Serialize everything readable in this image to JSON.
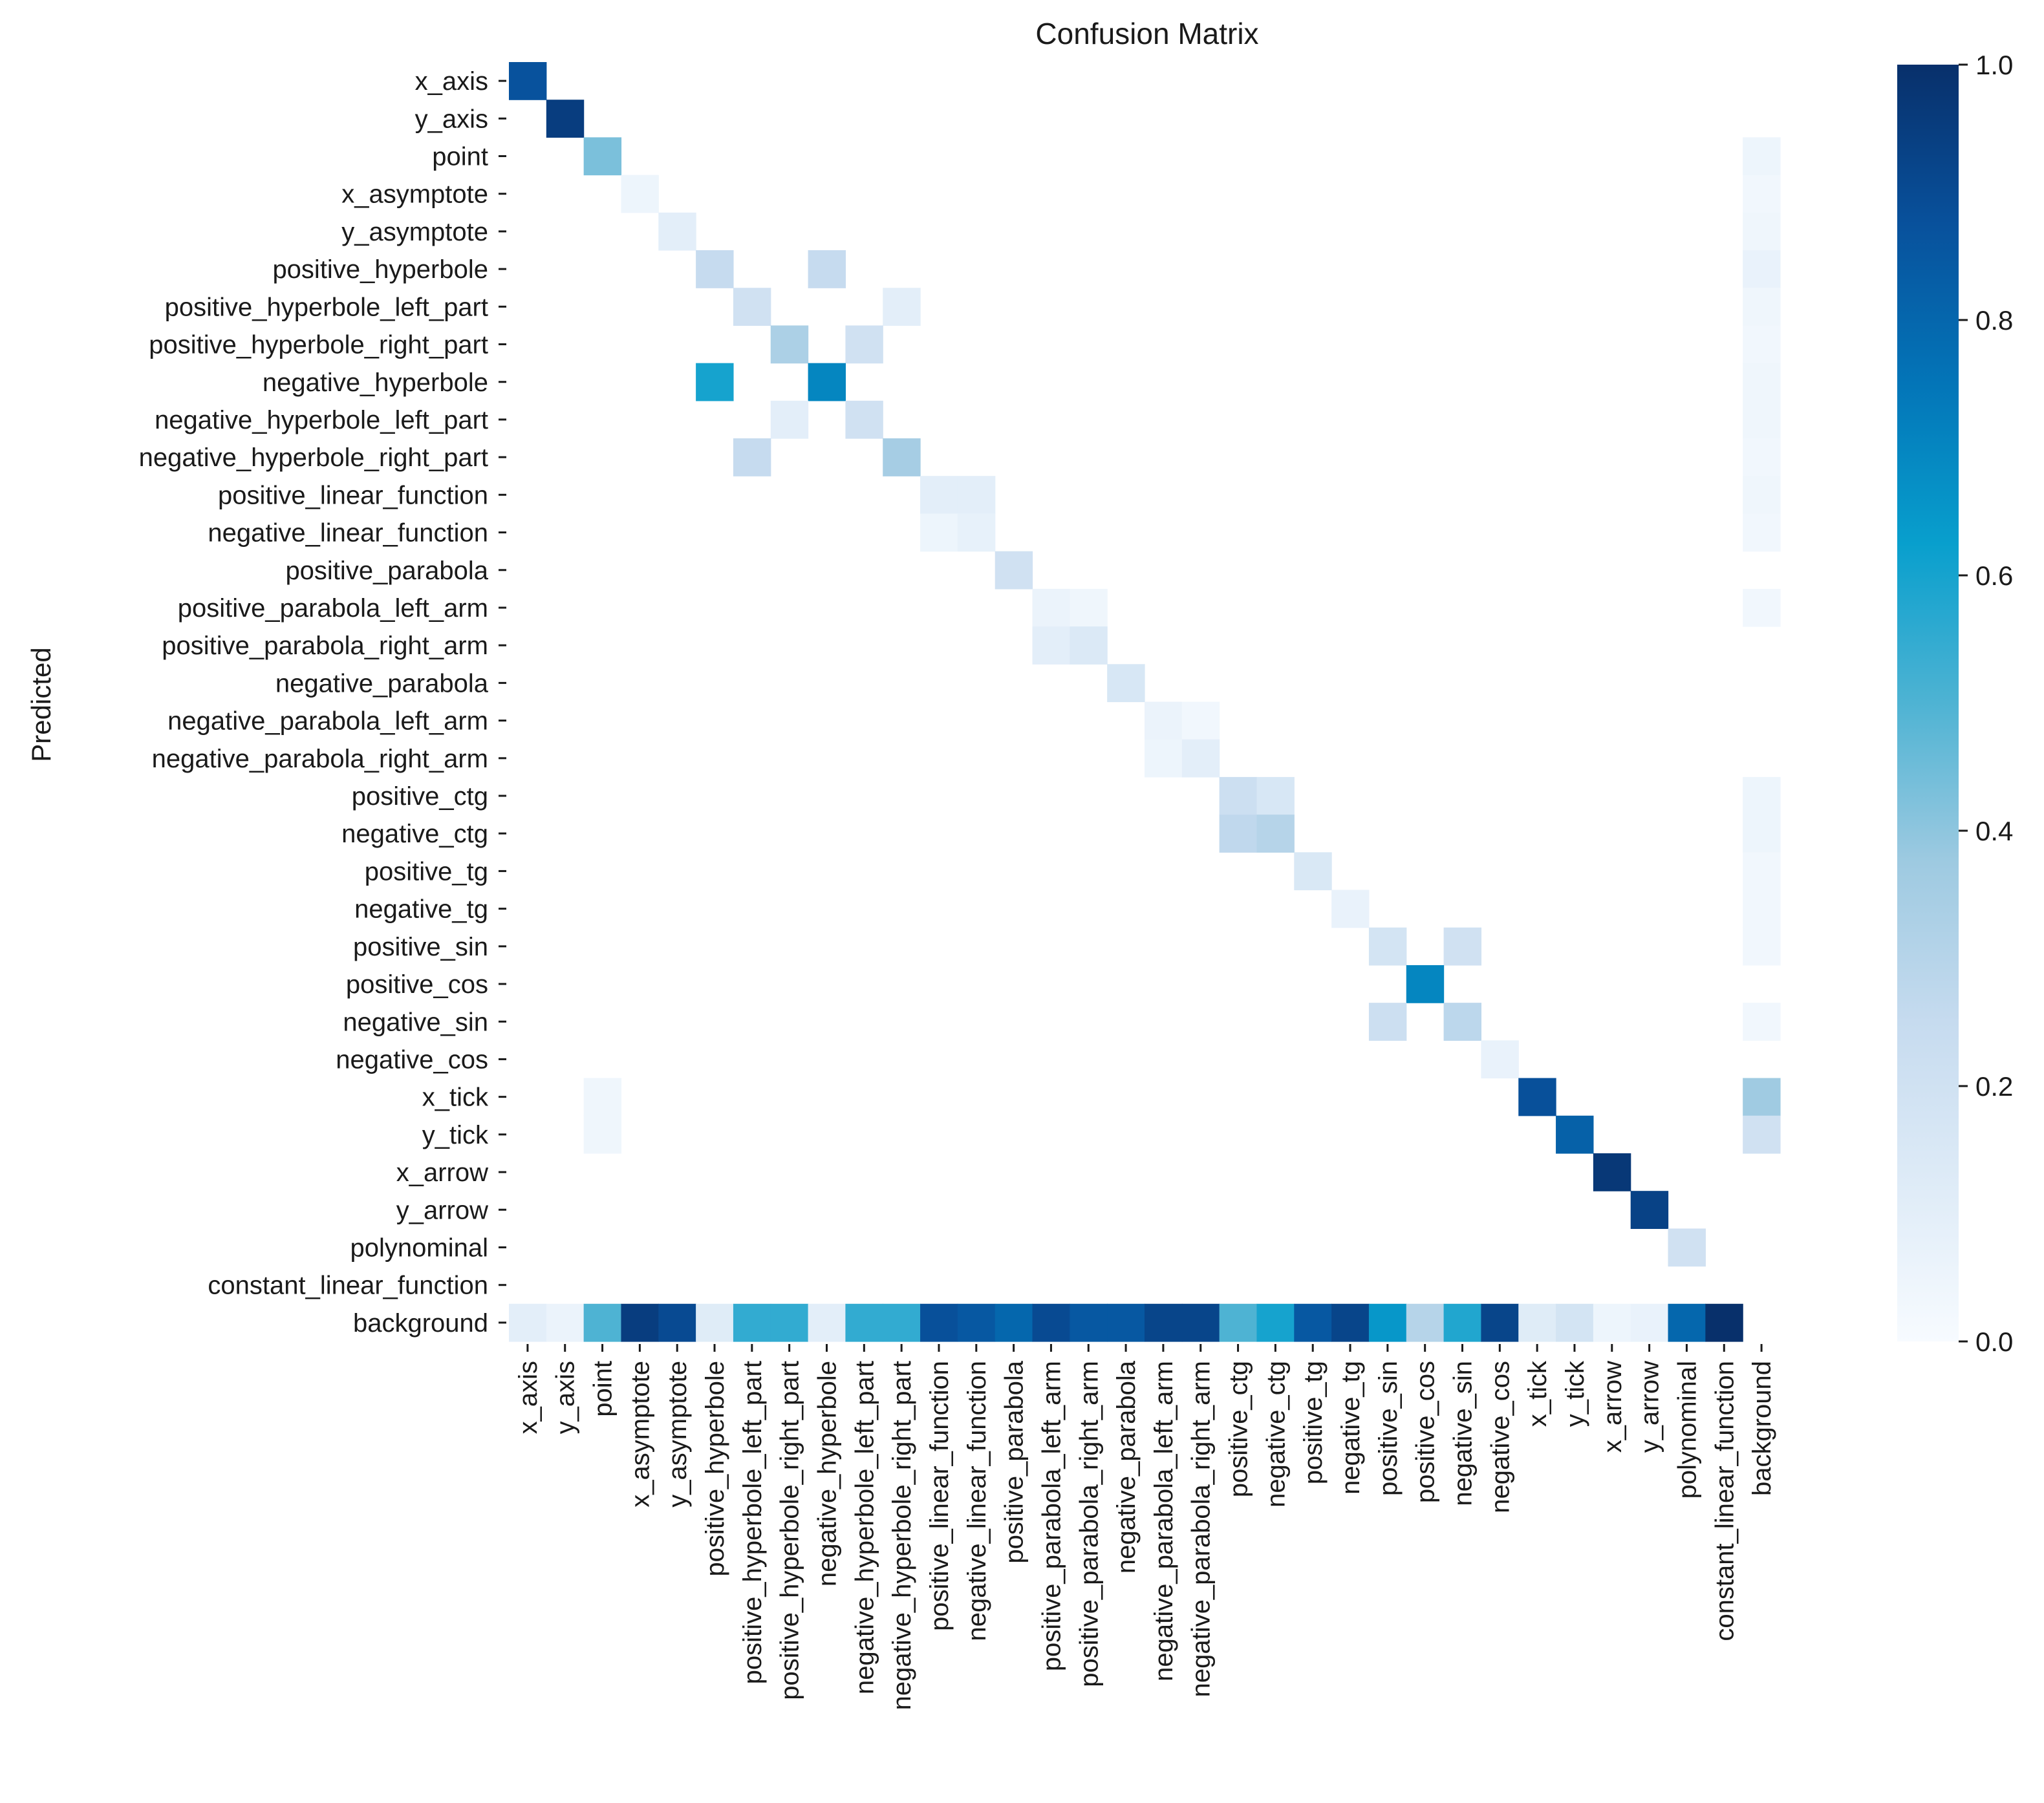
{
  "chart_data": {
    "type": "heatmap",
    "title": "Confusion Matrix",
    "ylabel": "Predicted",
    "xlabel": "",
    "labels": [
      "x_axis",
      "y_axis",
      "point",
      "x_asymptote",
      "y_asymptote",
      "positive_hyperbole",
      "positive_hyperbole_left_part",
      "positive_hyperbole_right_part",
      "negative_hyperbole",
      "negative_hyperbole_left_part",
      "negative_hyperbole_right_part",
      "positive_linear_function",
      "negative_linear_function",
      "positive_parabola",
      "positive_parabola_left_arm",
      "positive_parabola_right_arm",
      "negative_parabola",
      "negative_parabola_left_arm",
      "negative_parabola_right_arm",
      "positive_ctg",
      "negative_ctg",
      "positive_tg",
      "negative_tg",
      "positive_sin",
      "positive_cos",
      "negative_sin",
      "negative_cos",
      "x_tick",
      "y_tick",
      "x_arrow",
      "y_arrow",
      "polynominal",
      "constant_linear_function",
      "background"
    ],
    "colorbar": {
      "min": 0.0,
      "max": 1.0,
      "ticks": [
        "0.0",
        "0.2",
        "0.4",
        "0.6",
        "0.8",
        "1.0"
      ]
    },
    "colors": {
      "low": "#f7fbff",
      "high": "#08306b"
    },
    "cells": [
      {
        "row": 0,
        "col": 0,
        "value": 0.87
      },
      {
        "row": 1,
        "col": 1,
        "value": 0.95
      },
      {
        "row": 2,
        "col": 2,
        "value": 0.43
      },
      {
        "row": 3,
        "col": 3,
        "value": 0.05
      },
      {
        "row": 4,
        "col": 4,
        "value": 0.1
      },
      {
        "row": 5,
        "col": 5,
        "value": 0.25
      },
      {
        "row": 5,
        "col": 8,
        "value": 0.25
      },
      {
        "row": 6,
        "col": 6,
        "value": 0.2
      },
      {
        "row": 6,
        "col": 10,
        "value": 0.1
      },
      {
        "row": 7,
        "col": 7,
        "value": 0.33
      },
      {
        "row": 7,
        "col": 9,
        "value": 0.2
      },
      {
        "row": 8,
        "col": 5,
        "value": 0.6
      },
      {
        "row": 8,
        "col": 8,
        "value": 0.7
      },
      {
        "row": 9,
        "col": 7,
        "value": 0.1
      },
      {
        "row": 9,
        "col": 9,
        "value": 0.2
      },
      {
        "row": 10,
        "col": 6,
        "value": 0.25
      },
      {
        "row": 10,
        "col": 10,
        "value": 0.35
      },
      {
        "row": 11,
        "col": 11,
        "value": 0.1
      },
      {
        "row": 11,
        "col": 12,
        "value": 0.1
      },
      {
        "row": 12,
        "col": 11,
        "value": 0.05
      },
      {
        "row": 12,
        "col": 12,
        "value": 0.08
      },
      {
        "row": 13,
        "col": 13,
        "value": 0.2
      },
      {
        "row": 14,
        "col": 14,
        "value": 0.06
      },
      {
        "row": 14,
        "col": 15,
        "value": 0.04
      },
      {
        "row": 15,
        "col": 14,
        "value": 0.1
      },
      {
        "row": 15,
        "col": 15,
        "value": 0.14
      },
      {
        "row": 16,
        "col": 16,
        "value": 0.16
      },
      {
        "row": 17,
        "col": 17,
        "value": 0.06
      },
      {
        "row": 17,
        "col": 18,
        "value": 0.03
      },
      {
        "row": 18,
        "col": 17,
        "value": 0.05
      },
      {
        "row": 18,
        "col": 18,
        "value": 0.1
      },
      {
        "row": 19,
        "col": 19,
        "value": 0.22
      },
      {
        "row": 19,
        "col": 20,
        "value": 0.16
      },
      {
        "row": 20,
        "col": 19,
        "value": 0.27
      },
      {
        "row": 20,
        "col": 20,
        "value": 0.3
      },
      {
        "row": 21,
        "col": 21,
        "value": 0.15
      },
      {
        "row": 22,
        "col": 22,
        "value": 0.07
      },
      {
        "row": 23,
        "col": 23,
        "value": 0.18
      },
      {
        "row": 23,
        "col": 25,
        "value": 0.2
      },
      {
        "row": 24,
        "col": 24,
        "value": 0.7
      },
      {
        "row": 25,
        "col": 23,
        "value": 0.22
      },
      {
        "row": 25,
        "col": 25,
        "value": 0.28
      },
      {
        "row": 26,
        "col": 26,
        "value": 0.07
      },
      {
        "row": 27,
        "col": 2,
        "value": 0.04
      },
      {
        "row": 27,
        "col": 27,
        "value": 0.88
      },
      {
        "row": 28,
        "col": 2,
        "value": 0.04
      },
      {
        "row": 28,
        "col": 28,
        "value": 0.82
      },
      {
        "row": 29,
        "col": 29,
        "value": 0.97
      },
      {
        "row": 30,
        "col": 30,
        "value": 0.93
      },
      {
        "row": 31,
        "col": 31,
        "value": 0.2
      },
      {
        "row": 2,
        "col": 33,
        "value": 0.05
      },
      {
        "row": 3,
        "col": 33,
        "value": 0.03
      },
      {
        "row": 4,
        "col": 33,
        "value": 0.04
      },
      {
        "row": 5,
        "col": 33,
        "value": 0.07
      },
      {
        "row": 6,
        "col": 33,
        "value": 0.04
      },
      {
        "row": 7,
        "col": 33,
        "value": 0.03
      },
      {
        "row": 8,
        "col": 33,
        "value": 0.04
      },
      {
        "row": 9,
        "col": 33,
        "value": 0.04
      },
      {
        "row": 10,
        "col": 33,
        "value": 0.03
      },
      {
        "row": 11,
        "col": 33,
        "value": 0.04
      },
      {
        "row": 12,
        "col": 33,
        "value": 0.03
      },
      {
        "row": 14,
        "col": 33,
        "value": 0.03
      },
      {
        "row": 19,
        "col": 33,
        "value": 0.05
      },
      {
        "row": 20,
        "col": 33,
        "value": 0.05
      },
      {
        "row": 21,
        "col": 33,
        "value": 0.03
      },
      {
        "row": 22,
        "col": 33,
        "value": 0.03
      },
      {
        "row": 23,
        "col": 33,
        "value": 0.03
      },
      {
        "row": 25,
        "col": 33,
        "value": 0.03
      },
      {
        "row": 27,
        "col": 33,
        "value": 0.37
      },
      {
        "row": 28,
        "col": 33,
        "value": 0.2
      },
      {
        "row": 33,
        "col": 0,
        "value": 0.1
      },
      {
        "row": 33,
        "col": 1,
        "value": 0.06
      },
      {
        "row": 33,
        "col": 2,
        "value": 0.5
      },
      {
        "row": 33,
        "col": 3,
        "value": 0.95
      },
      {
        "row": 33,
        "col": 4,
        "value": 0.9
      },
      {
        "row": 33,
        "col": 5,
        "value": 0.12
      },
      {
        "row": 33,
        "col": 6,
        "value": 0.55
      },
      {
        "row": 33,
        "col": 7,
        "value": 0.55
      },
      {
        "row": 33,
        "col": 8,
        "value": 0.1
      },
      {
        "row": 33,
        "col": 9,
        "value": 0.55
      },
      {
        "row": 33,
        "col": 10,
        "value": 0.55
      },
      {
        "row": 33,
        "col": 11,
        "value": 0.88
      },
      {
        "row": 33,
        "col": 12,
        "value": 0.85
      },
      {
        "row": 33,
        "col": 13,
        "value": 0.8
      },
      {
        "row": 33,
        "col": 14,
        "value": 0.9
      },
      {
        "row": 33,
        "col": 15,
        "value": 0.85
      },
      {
        "row": 33,
        "col": 16,
        "value": 0.85
      },
      {
        "row": 33,
        "col": 17,
        "value": 0.92
      },
      {
        "row": 33,
        "col": 18,
        "value": 0.92
      },
      {
        "row": 33,
        "col": 19,
        "value": 0.5
      },
      {
        "row": 33,
        "col": 20,
        "value": 0.6
      },
      {
        "row": 33,
        "col": 21,
        "value": 0.85
      },
      {
        "row": 33,
        "col": 22,
        "value": 0.92
      },
      {
        "row": 33,
        "col": 23,
        "value": 0.65
      },
      {
        "row": 33,
        "col": 24,
        "value": 0.3
      },
      {
        "row": 33,
        "col": 25,
        "value": 0.58
      },
      {
        "row": 33,
        "col": 26,
        "value": 0.92
      },
      {
        "row": 33,
        "col": 27,
        "value": 0.12
      },
      {
        "row": 33,
        "col": 28,
        "value": 0.18
      },
      {
        "row": 33,
        "col": 29,
        "value": 0.05
      },
      {
        "row": 33,
        "col": 30,
        "value": 0.07
      },
      {
        "row": 33,
        "col": 31,
        "value": 0.8
      },
      {
        "row": 33,
        "col": 32,
        "value": 1.0
      }
    ]
  }
}
